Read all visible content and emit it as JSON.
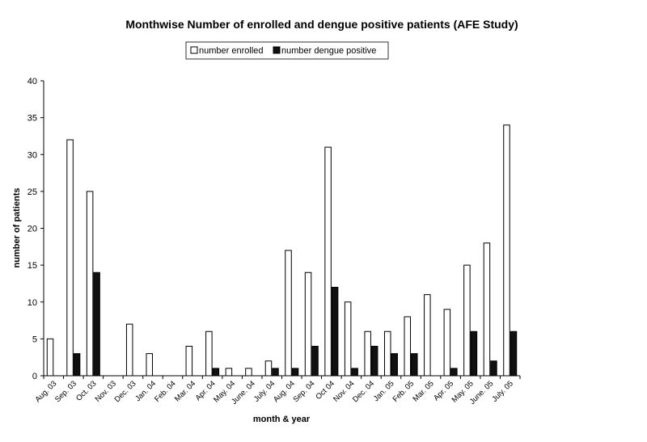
{
  "chart_data": {
    "type": "bar",
    "title": "Monthwise Number of enrolled and dengue positive patients (AFE Study)",
    "xlabel": "month & year",
    "ylabel": "number of patients",
    "ylim": [
      0,
      40
    ],
    "yticks": [
      0,
      5,
      10,
      15,
      20,
      25,
      30,
      35,
      40
    ],
    "grid": false,
    "legend_position": "top",
    "categories": [
      "Aug. 03",
      "Sep. 03",
      "Oct. 03",
      "Nov. 03",
      "Dec. 03",
      "Jan. 04",
      "Feb. 04",
      "Mar. 04",
      "Apr. 04",
      "May. 04",
      "June. 04",
      "July. 04",
      "Aug. 04",
      "Sep. 04",
      "Oct 04",
      "Nov. 04",
      "Dec. 04",
      "Jan. 05",
      "Feb. 05",
      "Mar. 05",
      "Apr. 05",
      "May. 05",
      "June. 05",
      "July. 05"
    ],
    "series": [
      {
        "name": "number enrolled",
        "color": "#ffffff",
        "values": [
          5,
          32,
          25,
          0,
          7,
          3,
          0,
          4,
          6,
          1,
          1,
          2,
          17,
          14,
          31,
          10,
          6,
          6,
          8,
          11,
          9,
          15,
          18,
          34
        ]
      },
      {
        "name": "number dengue positive",
        "color": "#111111",
        "values": [
          0,
          3,
          14,
          0,
          0,
          0,
          0,
          0,
          1,
          0,
          0,
          1,
          1,
          4,
          12,
          1,
          4,
          3,
          3,
          0,
          1,
          6,
          2,
          6
        ]
      }
    ]
  }
}
